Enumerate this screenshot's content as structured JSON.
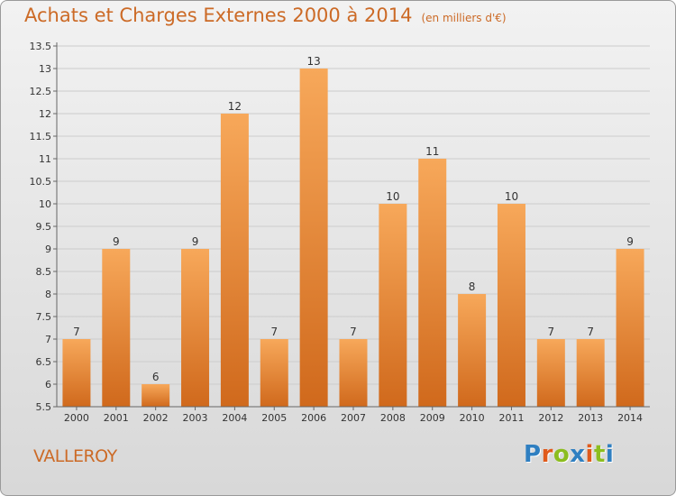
{
  "title": "Achats et Charges Externes 2000 à 2014",
  "unit_label": "(en milliers d'€)",
  "commune": "VALLEROY",
  "logo": {
    "text": "Proxiti",
    "letter_colors": [
      "#2f7fc1",
      "#e05a1b",
      "#8cbd1f",
      "#2f7fc1",
      "#e05a1b",
      "#8cbd1f",
      "#2f7fc1"
    ]
  },
  "colors": {
    "accent": "#cc6a26",
    "bar_top": "#f7a85a",
    "bar_bottom": "#d0691c",
    "grid": "#cccccc",
    "axis_text": "#333333"
  },
  "chart_data": {
    "type": "bar",
    "categories": [
      "2000",
      "2001",
      "2002",
      "2003",
      "2004",
      "2005",
      "2006",
      "2007",
      "2008",
      "2009",
      "2010",
      "2011",
      "2012",
      "2013",
      "2014"
    ],
    "values": [
      7,
      9,
      6,
      9,
      12,
      7,
      13,
      7,
      10,
      11,
      8,
      10,
      7,
      7,
      9
    ],
    "data_labels": [
      "7",
      "9",
      "6",
      "9",
      "12",
      "7",
      "13",
      "7",
      "10",
      "11",
      "8",
      "10",
      "7",
      "7",
      "9"
    ],
    "ylim": [
      5.5,
      13.5
    ],
    "yticks": [
      "5.5",
      "6",
      "6.5",
      "7",
      "7.5",
      "8",
      "8.5",
      "9",
      "9.5",
      "10",
      "10.5",
      "11",
      "11.5",
      "12",
      "12.5",
      "13",
      "13.5"
    ],
    "grid": true,
    "xlabel": "",
    "ylabel": ""
  }
}
